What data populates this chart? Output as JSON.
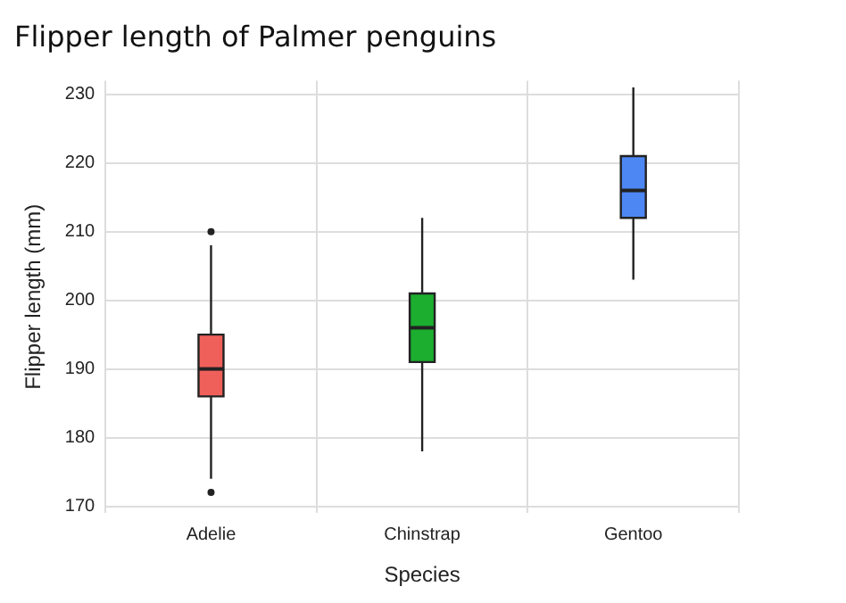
{
  "chart_data": {
    "type": "box",
    "title": "Flipper length of Palmer penguins",
    "xlabel": "Species",
    "ylabel": "Flipper length (mm)",
    "categories": [
      "Adelie",
      "Chinstrap",
      "Gentoo"
    ],
    "colors": [
      "#f0605b",
      "#1bae2f",
      "#4d87f4"
    ],
    "boxes": [
      {
        "low": 174,
        "q1": 186,
        "median": 190,
        "q3": 195,
        "high": 208,
        "outliers": [
          172,
          210
        ]
      },
      {
        "low": 178,
        "q1": 191,
        "median": 196,
        "q3": 201,
        "high": 212
      },
      {
        "low": 203,
        "q1": 212,
        "median": 216,
        "q3": 221,
        "high": 231
      }
    ],
    "ylim": [
      169,
      232
    ],
    "yticks": [
      170,
      180,
      190,
      200,
      210,
      220,
      230
    ],
    "grid": true,
    "legend": false
  }
}
